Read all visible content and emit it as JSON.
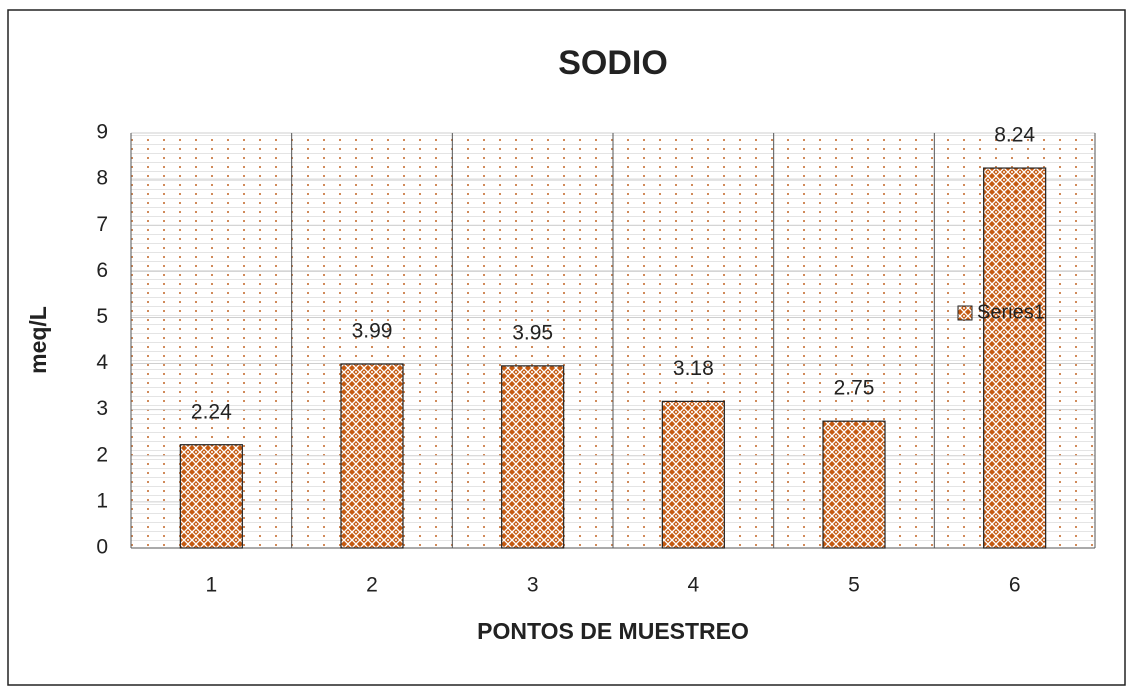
{
  "chart_data": {
    "type": "bar",
    "title": "SODIO",
    "x_label": "PONTOS DE MUESTREO",
    "y_label": "meq/L",
    "categories": [
      "1",
      "2",
      "3",
      "4",
      "5",
      "6"
    ],
    "series": [
      {
        "name": "Series1",
        "color": "#c55a11",
        "values": [
          2.24,
          3.99,
          3.95,
          3.18,
          2.75,
          8.24
        ]
      }
    ],
    "ylim": [
      0,
      9
    ],
    "yticks": [
      0,
      1,
      2,
      3,
      4,
      5,
      6,
      7,
      8,
      9
    ],
    "grid": true,
    "legend": "right"
  }
}
